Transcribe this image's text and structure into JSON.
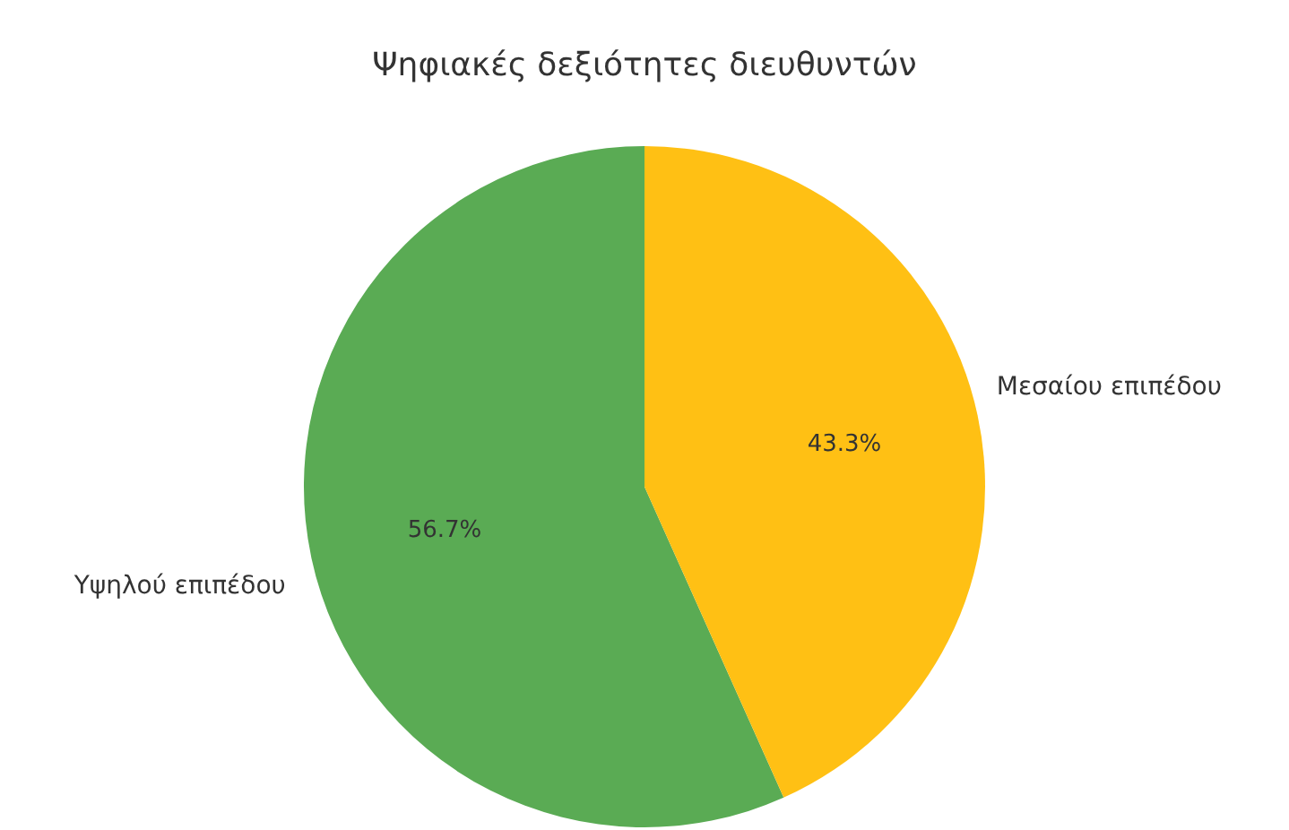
{
  "chart_data": {
    "type": "pie",
    "title": "Ψηφιακές δεξιότητες διευθυντών",
    "categories": [
      "Υψηλού επιπέδου",
      "Μεσαίου επιπέδου"
    ],
    "values": [
      56.7,
      43.3
    ],
    "colors": [
      "#5aab54",
      "#ffc014"
    ],
    "value_labels": [
      "56.7%",
      "43.3%"
    ]
  }
}
